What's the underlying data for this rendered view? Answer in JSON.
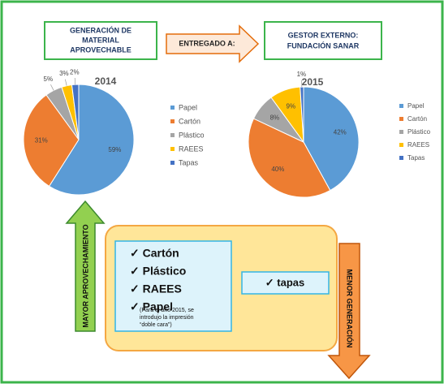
{
  "diagram": {
    "source_box": [
      "GENERACIÓN DE",
      "MATERIAL",
      "APROVECHABLE"
    ],
    "arrow_label": "ENTREGADO A:",
    "target_box": [
      "GESTOR EXTERNO:",
      "FUNDACIÓN SANAR"
    ],
    "up_arrow_label": "MAYOR  APROVECHAMIENTO",
    "down_arrow_label": "MENOR    GENERACIÓN",
    "checklist": [
      "✓ Cartón",
      "✓ Plástico",
      "✓ RAEES",
      "✓ Papel"
    ],
    "note": [
      "(Para el año 2015, se",
      "introdujo la impresión",
      "“doble cara”)"
    ],
    "side_item": "✓ tapas"
  },
  "chart_data": [
    {
      "type": "pie",
      "title": "2014",
      "categories": [
        "Papel",
        "Cartón",
        "Plástico",
        "RAEES",
        "Tapas"
      ],
      "values": [
        59,
        31,
        5,
        3,
        2
      ],
      "value_labels": [
        "59%",
        "31%",
        "5%",
        "3%",
        "2%"
      ],
      "colors": [
        "#5b9bd5",
        "#ed7d31",
        "#a5a5a5",
        "#ffc000",
        "#4472c4"
      ],
      "legend": "right"
    },
    {
      "type": "pie",
      "title": "2015",
      "categories": [
        "Papel",
        "Cartón",
        "Plástico",
        "RAEES",
        "Tapas"
      ],
      "values": [
        42,
        40,
        8,
        9,
        1
      ],
      "value_labels": [
        "42%",
        "40%",
        "8%",
        "9%",
        "1%"
      ],
      "colors": [
        "#5b9bd5",
        "#ed7d31",
        "#a5a5a5",
        "#ffc000",
        "#4472c4"
      ],
      "legend": "right"
    }
  ]
}
